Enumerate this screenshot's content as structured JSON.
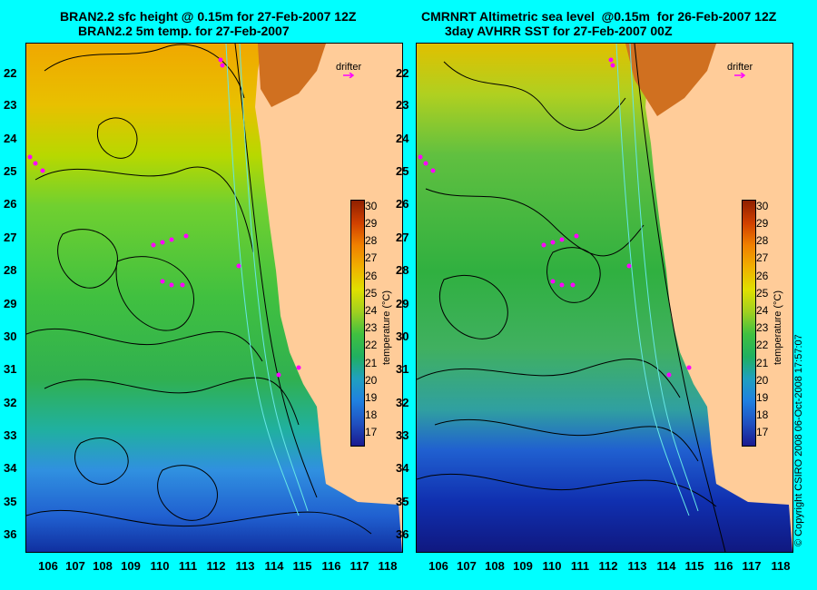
{
  "left_panel": {
    "title_line1": "BRAN2.2 sfc height @ 0.15m for 27-Feb-2007 12Z",
    "title_line2": "BRAN2.2 5m temp. for 27-Feb-2007"
  },
  "right_panel": {
    "title_line1": "CMRNRT Altimetric sea level  @0.15m  for 26-Feb-2007 12Z",
    "title_line2": "3day AVHRR SST for 27-Feb-2007 00Z"
  },
  "lat_labels": [
    "22",
    "23",
    "24",
    "25",
    "26",
    "27",
    "28",
    "29",
    "30",
    "31",
    "32",
    "33",
    "34",
    "35",
    "36"
  ],
  "lon_labels": [
    "106",
    "107",
    "108",
    "109",
    "110",
    "111",
    "112",
    "113",
    "114",
    "115",
    "116",
    "117",
    "118"
  ],
  "colorbar": {
    "label": "temperature (°C)",
    "ticks": [
      "30",
      "29",
      "28",
      "27",
      "26",
      "25",
      "24",
      "23",
      "22",
      "21",
      "20",
      "19",
      "18",
      "17"
    ]
  },
  "drifter_label": "drifter",
  "copyright": "© Copyright CSIRO 2008    06-Oct-2008 17:57:07",
  "colors": {
    "background": "#00ffff",
    "land": "#ffcc99",
    "contour": "#000000",
    "isobath": "#66e6e6",
    "drifter": "#ff00ff"
  }
}
